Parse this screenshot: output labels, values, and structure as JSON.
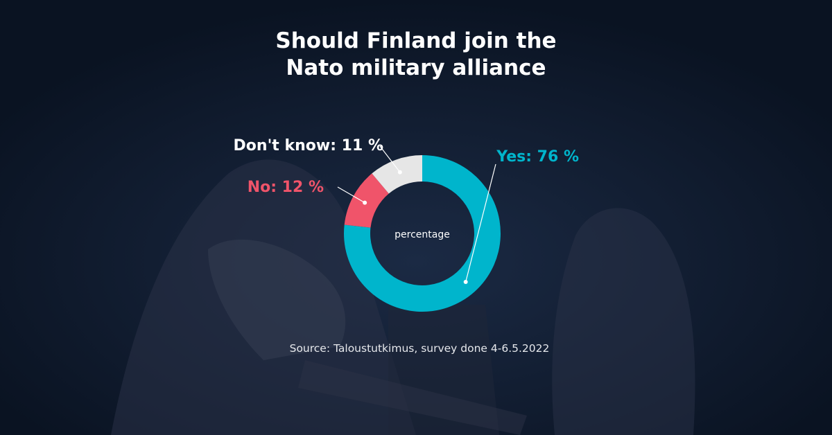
{
  "colors": {
    "background": "#0c1628",
    "yes": "#00b5cc",
    "no": "#f0546a",
    "dont_know": "#e6e6e6",
    "text": "#ffffff"
  },
  "chart_data": {
    "type": "pie",
    "title": "Should Finland join the Nato military alliance",
    "title_lines": [
      "Should Finland join the",
      "Nato military alliance"
    ],
    "center_label": "percentage",
    "slices": [
      {
        "name": "Yes",
        "value": 76,
        "label": "Yes: 76 %",
        "color": "#00b5cc"
      },
      {
        "name": "No",
        "value": 12,
        "label": "No: 12 %",
        "color": "#f0546a"
      },
      {
        "name": "Don't know",
        "value": 11,
        "label": "Don't know:  11 %",
        "color": "#e6e6e6"
      }
    ],
    "source": "Source: Taloustutkimus, survey done 4-6.5.2022"
  }
}
